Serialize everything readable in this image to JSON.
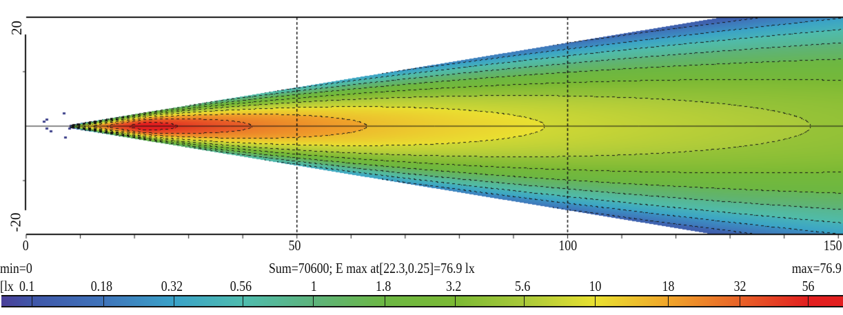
{
  "chart_data": {
    "type": "heatmap",
    "x_ticks": [
      "0",
      "50",
      "100",
      "150"
    ],
    "y_ticks": [
      "20",
      "-20"
    ],
    "xlim": [
      0,
      151
    ],
    "ylim": [
      -20,
      20
    ],
    "dashed_vertical_lines_at": [
      50,
      100
    ],
    "scale": "log",
    "unit_label": "[lx",
    "levels": [
      0.1,
      0.18,
      0.32,
      0.56,
      1,
      1.8,
      3.2,
      5.6,
      10,
      18,
      32,
      56
    ],
    "level_labels": [
      "0.1",
      "0.18",
      "0.32",
      "0.56",
      "1",
      "1.8",
      "3.2",
      "5.6",
      "10",
      "18",
      "32",
      "56"
    ],
    "colors": [
      "#4b3f98",
      "#3f56a8",
      "#3f74ba",
      "#3aa2c8",
      "#4fbcae",
      "#5db37c",
      "#6cb743",
      "#7bb934",
      "#a9c93a",
      "#e9e131",
      "#f0a52a",
      "#e86228",
      "#e21f1f"
    ],
    "min_label": "min=0",
    "max_label": "max=76.9",
    "summary": "Sum=70600; E max at[22.3,0.25]=76.9 lx",
    "max_value": 76.9,
    "max_position": [
      22.3,
      0.25
    ],
    "contours": "dashed isolines at each level"
  }
}
